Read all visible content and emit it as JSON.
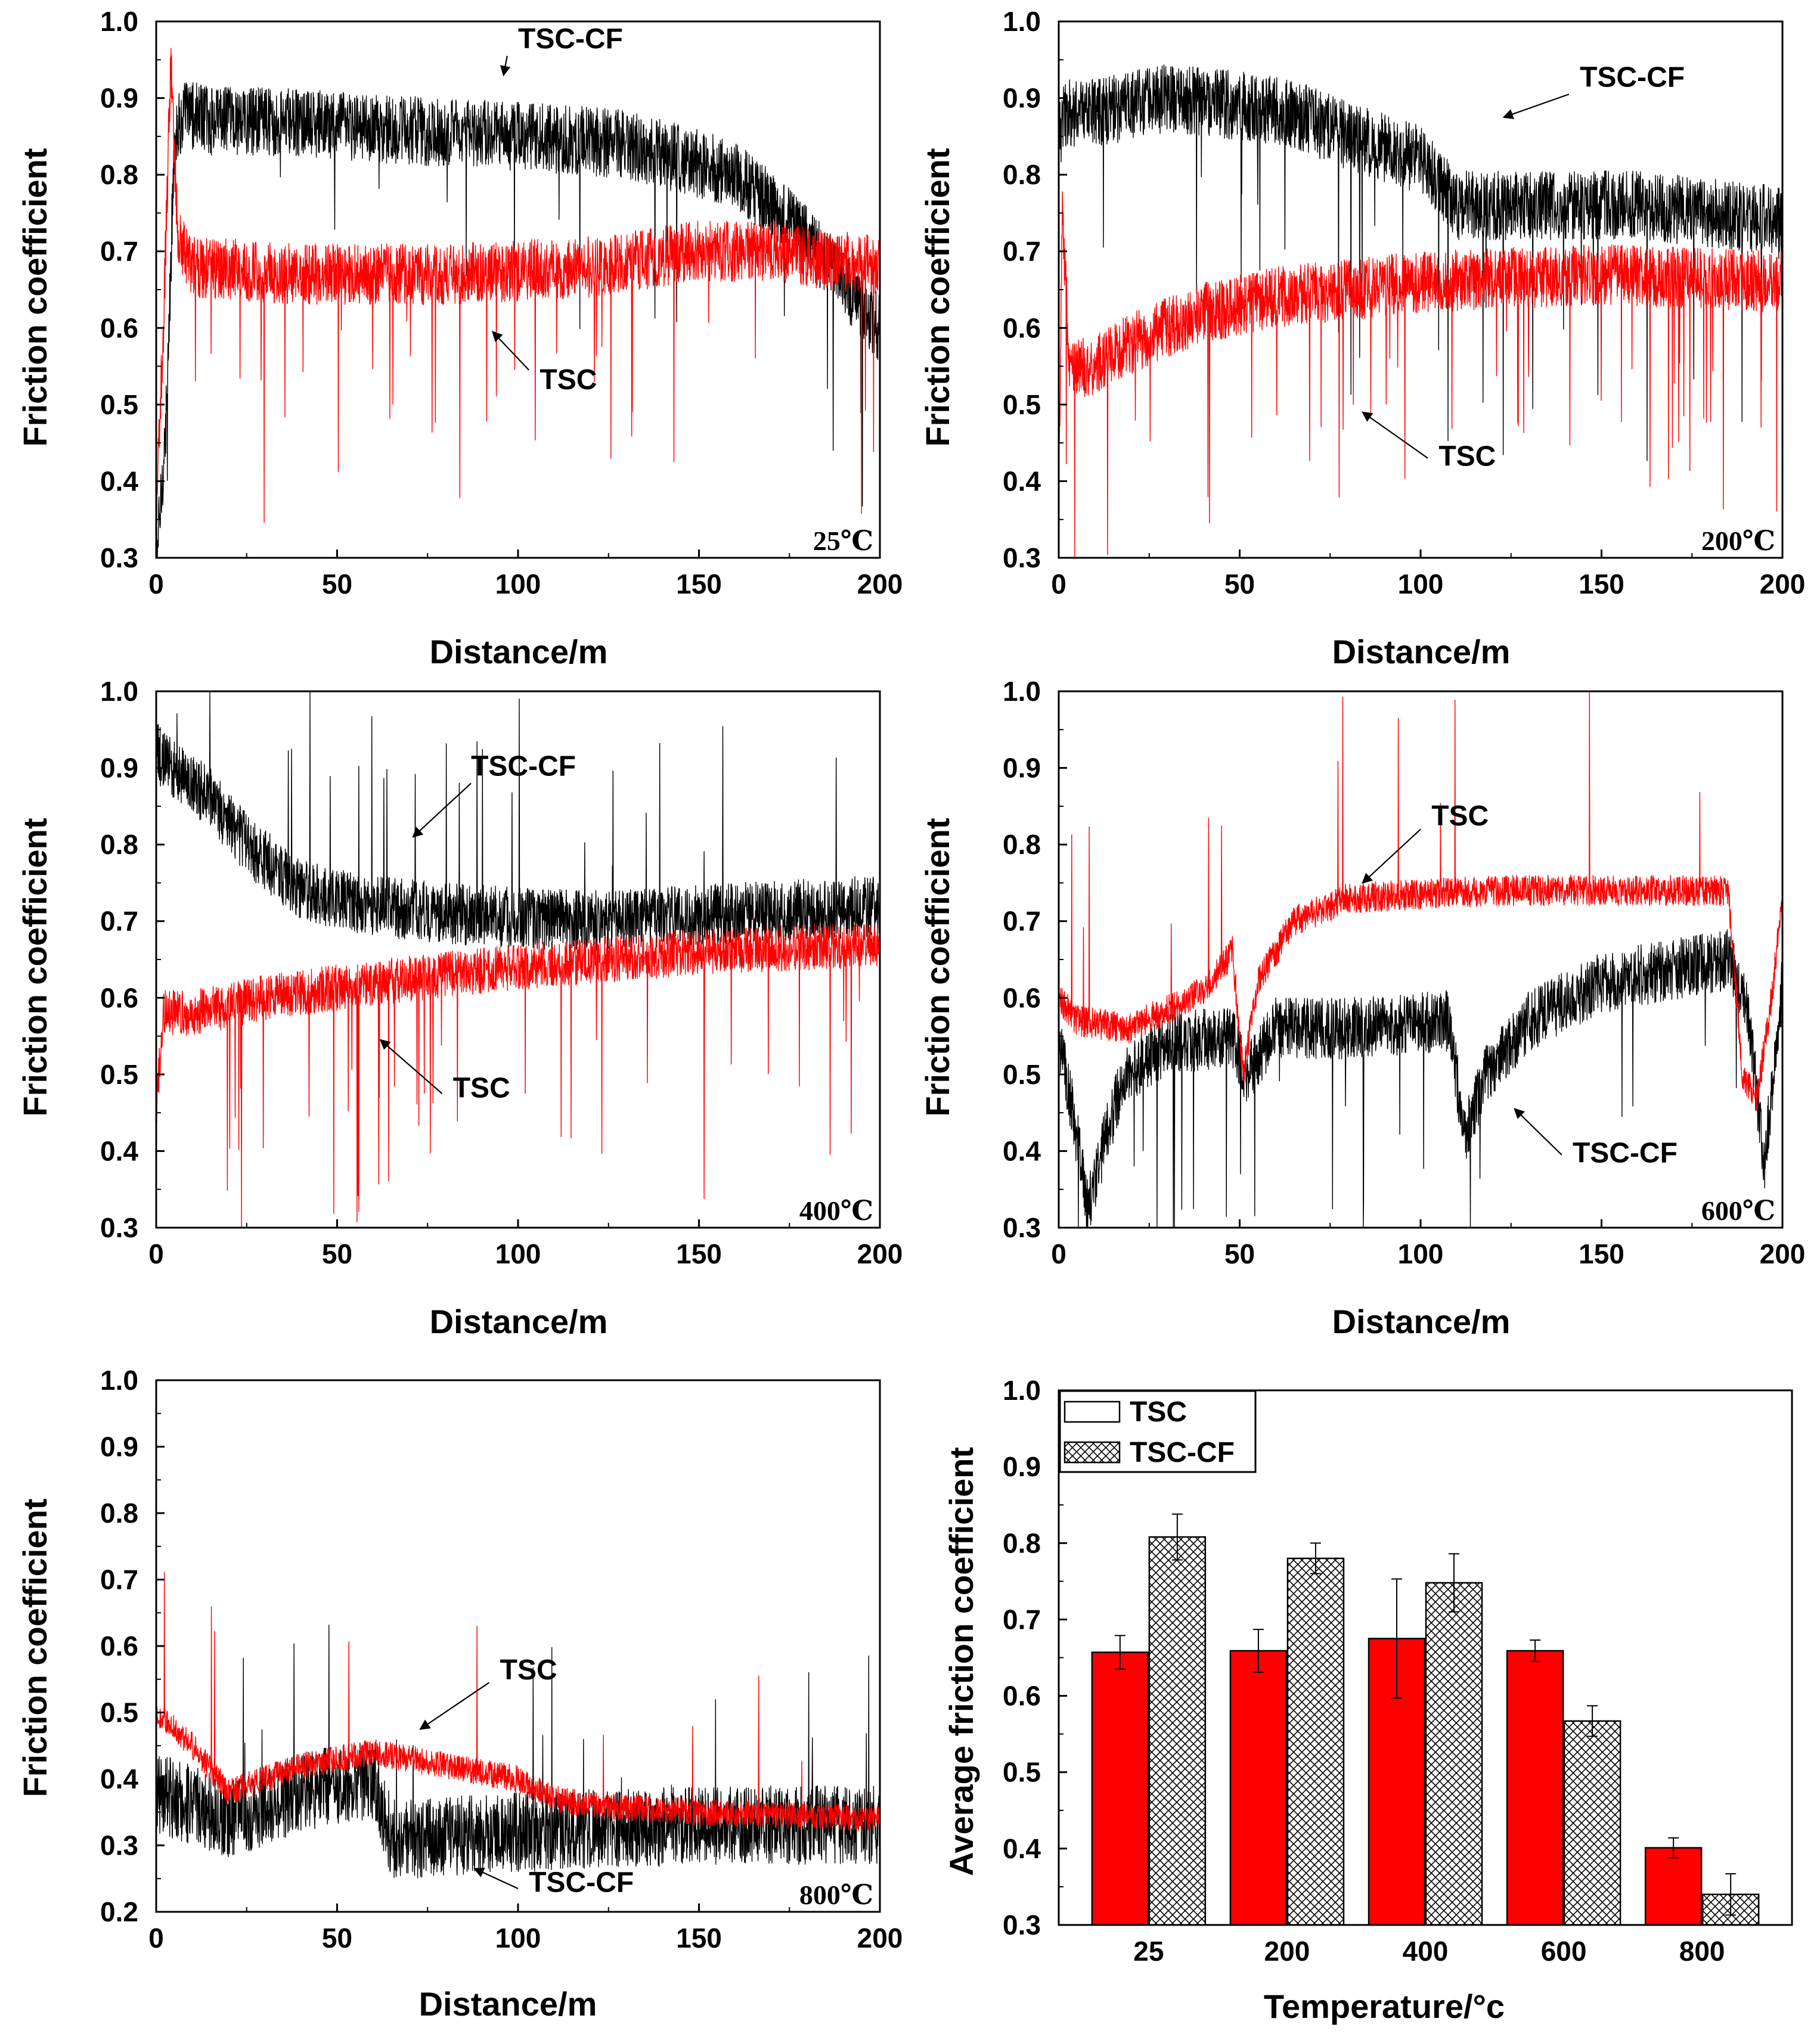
{
  "colors": {
    "tsc": "#ff0000",
    "tsc_cf": "#000000",
    "axis": "#000000",
    "bar_tsc": "#ff0000",
    "bar_tsc_cf_hatch": "#000000"
  },
  "chart_data": [
    {
      "id": "p25",
      "type": "line",
      "xlabel": "Distance/m",
      "ylabel": "Friction coefficient",
      "xlim": [
        0,
        200
      ],
      "ylim": [
        0.3,
        1.0
      ],
      "xticks": [
        "0",
        "50",
        "100",
        "150",
        "200"
      ],
      "yticks": [
        "0.3",
        "0.4",
        "0.5",
        "0.6",
        "0.7",
        "0.8",
        "0.9",
        "1.0"
      ],
      "temperature_label": "25℃",
      "series": [
        {
          "name": "TSC-CF",
          "color": "#000000",
          "noise": 0.045,
          "spike_prob": 0.01,
          "spike_dir": -1,
          "x": [
            0,
            1,
            3,
            5,
            8,
            15,
            30,
            60,
            100,
            130,
            160,
            175,
            190,
            200
          ],
          "y": [
            0.3,
            0.35,
            0.5,
            0.85,
            0.88,
            0.87,
            0.87,
            0.86,
            0.85,
            0.84,
            0.8,
            0.74,
            0.66,
            0.6
          ]
        },
        {
          "name": "TSC",
          "color": "#ff0000",
          "noise": 0.04,
          "spike_prob": 0.015,
          "spike_dir": -1,
          "x": [
            0,
            2,
            4,
            6,
            10,
            40,
            80,
            120,
            150,
            170,
            200
          ],
          "y": [
            0.35,
            0.6,
            0.95,
            0.72,
            0.68,
            0.67,
            0.67,
            0.68,
            0.7,
            0.7,
            0.68
          ]
        }
      ],
      "annotations": [
        {
          "text": "TSC-CF",
          "x": 100,
          "y": 0.965,
          "arrow_from": [
            97,
            0.955
          ],
          "arrow_to": [
            96,
            0.93
          ]
        },
        {
          "text": "TSC",
          "x": 106,
          "y": 0.52,
          "arrow_from": [
            103,
            0.545
          ],
          "arrow_to": [
            93,
            0.595
          ]
        }
      ]
    },
    {
      "id": "p200",
      "type": "line",
      "xlabel": "Distance/m",
      "ylabel": "Friction coefficient",
      "xlim": [
        0,
        200
      ],
      "ylim": [
        0.3,
        1.0
      ],
      "xticks": [
        "0",
        "50",
        "100",
        "150",
        "200"
      ],
      "yticks": [
        "0.3",
        "0.4",
        "0.5",
        "0.6",
        "0.7",
        "0.8",
        "0.9",
        "1.0"
      ],
      "temperature_label": "200℃",
      "series": [
        {
          "name": "TSC-CF",
          "color": "#000000",
          "noise": 0.045,
          "spike_prob": 0.01,
          "spike_dir": -1,
          "x": [
            0,
            2,
            10,
            30,
            50,
            65,
            80,
            100,
            110,
            130,
            160,
            200
          ],
          "y": [
            0.85,
            0.88,
            0.88,
            0.9,
            0.89,
            0.88,
            0.85,
            0.82,
            0.76,
            0.76,
            0.76,
            0.74
          ]
        },
        {
          "name": "TSC",
          "color": "#ff0000",
          "noise": 0.04,
          "spike_prob": 0.02,
          "spike_dir": -1,
          "x": [
            0,
            1,
            3,
            10,
            20,
            40,
            60,
            100,
            150,
            200
          ],
          "y": [
            0.38,
            0.75,
            0.55,
            0.55,
            0.58,
            0.62,
            0.64,
            0.66,
            0.67,
            0.66
          ]
        }
      ],
      "annotations": [
        {
          "text": "TSC-CF",
          "x": 144,
          "y": 0.915,
          "arrow_from": [
            141,
            0.905
          ],
          "arrow_to": [
            123,
            0.875
          ]
        },
        {
          "text": "TSC",
          "x": 105,
          "y": 0.42,
          "arrow_from": [
            102,
            0.43
          ],
          "arrow_to": [
            84,
            0.49
          ]
        }
      ]
    },
    {
      "id": "p400",
      "type": "line",
      "xlabel": "Distance/m",
      "ylabel": "Friction coefficient",
      "xlim": [
        0,
        200
      ],
      "ylim": [
        0.3,
        1.0
      ],
      "xticks": [
        "0",
        "50",
        "100",
        "150",
        "200"
      ],
      "yticks": [
        "0.3",
        "0.4",
        "0.5",
        "0.6",
        "0.7",
        "0.8",
        "0.9",
        "1.0"
      ],
      "temperature_label": "400℃",
      "series": [
        {
          "name": "TSC-CF",
          "color": "#000000",
          "noise": 0.04,
          "spike_prob": 0.01,
          "spike_dir": 1,
          "x": [
            0,
            5,
            15,
            25,
            40,
            60,
            80,
            120,
            200
          ],
          "y": [
            0.92,
            0.9,
            0.86,
            0.8,
            0.74,
            0.72,
            0.71,
            0.7,
            0.72
          ]
        },
        {
          "name": "TSC",
          "color": "#ff0000",
          "noise": 0.03,
          "spike_prob": 0.02,
          "spike_dir": -1,
          "x": [
            0,
            2,
            10,
            30,
            60,
            100,
            150,
            200
          ],
          "y": [
            0.45,
            0.58,
            0.58,
            0.6,
            0.62,
            0.64,
            0.66,
            0.67
          ]
        }
      ],
      "annotations": [
        {
          "text": "TSC-CF",
          "x": 87,
          "y": 0.89,
          "arrow_from": [
            87,
            0.88
          ],
          "arrow_to": [
            71,
            0.81
          ]
        },
        {
          "text": "TSC",
          "x": 82,
          "y": 0.47,
          "arrow_from": [
            79,
            0.475
          ],
          "arrow_to": [
            62,
            0.545
          ]
        }
      ]
    },
    {
      "id": "p600",
      "type": "line",
      "xlabel": "Distance/m",
      "ylabel": "Friction coefficient",
      "xlim": [
        0,
        200
      ],
      "ylim": [
        0.3,
        1.0
      ],
      "xticks": [
        "0",
        "50",
        "100",
        "150",
        "200"
      ],
      "yticks": [
        "0.3",
        "0.4",
        "0.5",
        "0.6",
        "0.7",
        "0.8",
        "0.9",
        "1.0"
      ],
      "temperature_label": "600℃",
      "series": [
        {
          "name": "TSC-CF",
          "color": "#000000",
          "noise": 0.04,
          "spike_prob": 0.01,
          "spike_dir": -1,
          "x": [
            0,
            4,
            8,
            12,
            18,
            30,
            48,
            52,
            60,
            80,
            108,
            112,
            118,
            130,
            150,
            185,
            190,
            195,
            200
          ],
          "y": [
            0.55,
            0.45,
            0.32,
            0.4,
            0.5,
            0.54,
            0.55,
            0.5,
            0.56,
            0.56,
            0.57,
            0.42,
            0.5,
            0.57,
            0.62,
            0.65,
            0.6,
            0.38,
            0.62
          ]
        },
        {
          "name": "TSC",
          "color": "#ff0000",
          "noise": 0.02,
          "spike_prob": 0.006,
          "spike_dir": 1,
          "x": [
            0,
            5,
            20,
            40,
            48,
            51,
            55,
            65,
            80,
            120,
            185,
            189,
            193,
            197,
            200
          ],
          "y": [
            0.6,
            0.57,
            0.56,
            0.61,
            0.66,
            0.5,
            0.62,
            0.7,
            0.73,
            0.74,
            0.74,
            0.5,
            0.47,
            0.6,
            0.73
          ]
        }
      ],
      "annotations": [
        {
          "text": "TSC",
          "x": 103,
          "y": 0.825,
          "arrow_from": [
            100,
            0.82
          ],
          "arrow_to": [
            84,
            0.75
          ]
        },
        {
          "text": "TSC-CF",
          "x": 142,
          "y": 0.385,
          "arrow_from": [
            139,
            0.395
          ],
          "arrow_to": [
            126,
            0.455
          ]
        }
      ]
    },
    {
      "id": "p800",
      "type": "line",
      "xlabel": "Distance/m",
      "ylabel": "Friction coefficient",
      "xlim": [
        0,
        200
      ],
      "ylim": [
        0.2,
        1.0
      ],
      "xticks": [
        "0",
        "50",
        "100",
        "150",
        "200"
      ],
      "yticks": [
        "0.2",
        "0.3",
        "0.4",
        "0.5",
        "0.6",
        "0.7",
        "0.8",
        "0.9",
        "1.0"
      ],
      "temperature_label": "800℃",
      "series": [
        {
          "name": "TSC-CF",
          "color": "#000000",
          "noise": 0.06,
          "spike_prob": 0.006,
          "spike_dir": 1,
          "x": [
            0,
            20,
            40,
            60,
            65,
            70,
            100,
            150,
            200
          ],
          "y": [
            0.38,
            0.34,
            0.38,
            0.4,
            0.31,
            0.31,
            0.32,
            0.33,
            0.33
          ]
        },
        {
          "name": "TSC",
          "color": "#ff0000",
          "noise": 0.02,
          "spike_prob": 0.004,
          "spike_dir": 1,
          "x": [
            0,
            10,
            20,
            40,
            60,
            80,
            100,
            110,
            120,
            150,
            200
          ],
          "y": [
            0.5,
            0.45,
            0.38,
            0.42,
            0.44,
            0.42,
            0.4,
            0.37,
            0.36,
            0.35,
            0.34
          ]
        }
      ],
      "annotations": [
        {
          "text": "TSC",
          "x": 95,
          "y": 0.55,
          "arrow_from": [
            92,
            0.545
          ],
          "arrow_to": [
            73,
            0.475
          ]
        },
        {
          "text": "TSC-CF",
          "x": 103,
          "y": 0.23,
          "arrow_from": [
            100,
            0.235
          ],
          "arrow_to": [
            88,
            0.265
          ]
        }
      ]
    },
    {
      "id": "pbar",
      "type": "bar",
      "xlabel": "Temperature/°c",
      "ylabel": "Average friction coefficient",
      "ylim": [
        0.3,
        1.0
      ],
      "yticks": [
        "0.3",
        "0.4",
        "0.5",
        "0.6",
        "0.7",
        "0.8",
        "0.9",
        "1.0"
      ],
      "categories": [
        "25",
        "200",
        "400",
        "600",
        "800"
      ],
      "legend_position": "top-left",
      "series": [
        {
          "name": "TSC",
          "style": "solid-red",
          "values": [
            0.657,
            0.659,
            0.675,
            0.659,
            0.401
          ],
          "errors": [
            0.022,
            0.028,
            0.078,
            0.014,
            0.013
          ]
        },
        {
          "name": "TSC-CF",
          "style": "crosshatch",
          "values": [
            0.808,
            0.78,
            0.748,
            0.567,
            0.34
          ],
          "errors": [
            0.03,
            0.02,
            0.038,
            0.02,
            0.027
          ]
        }
      ]
    }
  ]
}
